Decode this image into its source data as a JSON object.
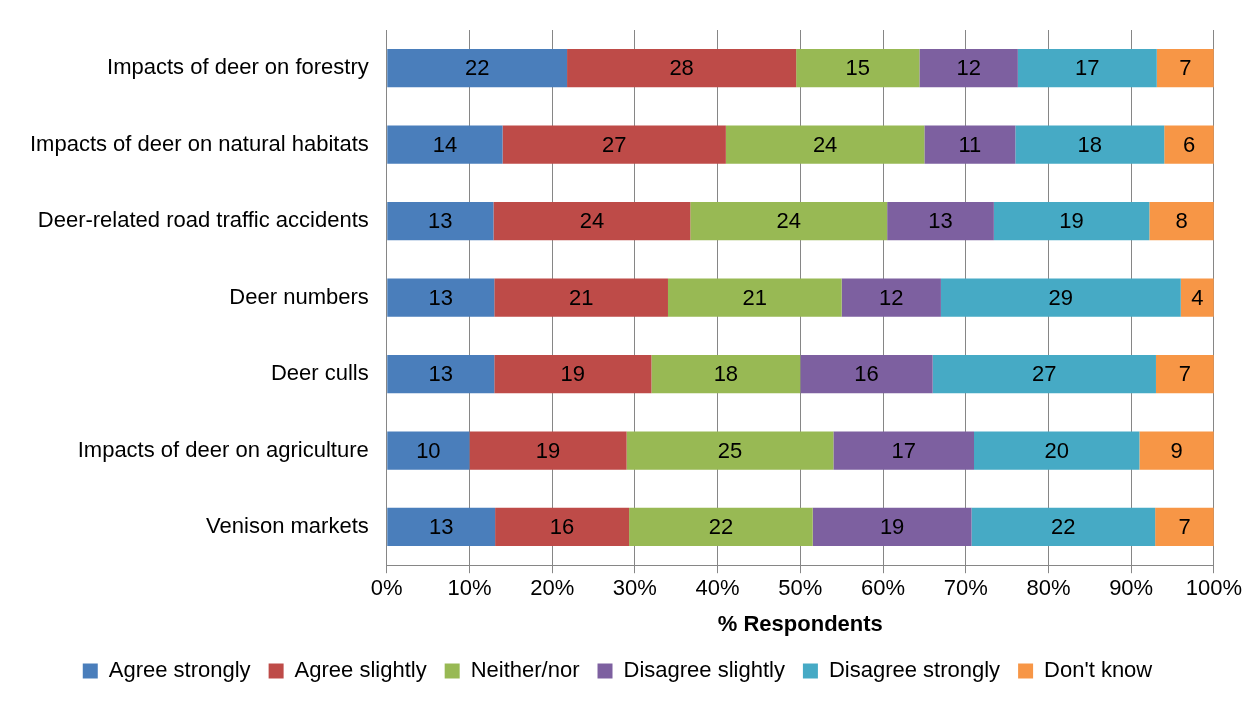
{
  "chart_data": {
    "type": "bar",
    "orientation": "horizontal",
    "stacked": true,
    "xlabel": "% Respondents",
    "categories": [
      "Impacts of deer on forestry",
      "Impacts of deer on natural habitats",
      "Deer-related road traffic accidents",
      "Deer numbers",
      "Deer culls",
      "Impacts of deer on agriculture",
      "Venison markets"
    ],
    "series": [
      {
        "name": "Agree strongly",
        "color": "#4a7ebb",
        "values": [
          21.8,
          14,
          12.9,
          13,
          13,
          10,
          13.1
        ],
        "value_labels": [
          "22",
          "14",
          "13",
          "13",
          "13",
          "10",
          "13"
        ]
      },
      {
        "name": "Agree slightly",
        "color": "#be4b48",
        "values": [
          27.7,
          27,
          23.8,
          21,
          19,
          19,
          16.2
        ],
        "value_labels": [
          "28",
          "27",
          "24",
          "21",
          "19",
          "19",
          "16"
        ]
      },
      {
        "name": "Neither/nor",
        "color": "#98b954",
        "values": [
          14.9,
          24,
          23.8,
          21,
          18,
          25,
          22.2
        ],
        "value_labels": [
          "15",
          "24",
          "24",
          "21",
          "18",
          "25",
          "22"
        ]
      },
      {
        "name": "Disagree slightly",
        "color": "#7d60a0",
        "values": [
          11.9,
          11,
          12.9,
          12,
          16,
          17,
          19.2
        ],
        "value_labels": [
          "12",
          "11",
          "13",
          "12",
          "16",
          "17",
          "19"
        ]
      },
      {
        "name": "Disagree strongly",
        "color": "#46aac5",
        "values": [
          16.8,
          18,
          18.8,
          29,
          27,
          20,
          22.2
        ],
        "value_labels": [
          "17",
          "18",
          "19",
          "29",
          "27",
          "20",
          "22"
        ]
      },
      {
        "name": "Don't know",
        "color": "#f79646",
        "values": [
          6.9,
          6,
          7.8,
          4,
          7,
          9,
          7.1
        ],
        "value_labels": [
          "7",
          "6",
          "8",
          "4",
          "7",
          "9",
          "7"
        ]
      }
    ],
    "xlim": [
      0,
      100
    ],
    "xticks": [
      {
        "value": 0,
        "label": "0%"
      },
      {
        "value": 10,
        "label": "10%"
      },
      {
        "value": 20,
        "label": "20%"
      },
      {
        "value": 30,
        "label": "30%"
      },
      {
        "value": 40,
        "label": "40%"
      },
      {
        "value": 50,
        "label": "50%"
      },
      {
        "value": 60,
        "label": "60%"
      },
      {
        "value": 70,
        "label": "70%"
      },
      {
        "value": 80,
        "label": "80%"
      },
      {
        "value": 90,
        "label": "90%"
      },
      {
        "value": 100,
        "label": "100%"
      }
    ],
    "grid": "x",
    "legend": "bottom"
  }
}
